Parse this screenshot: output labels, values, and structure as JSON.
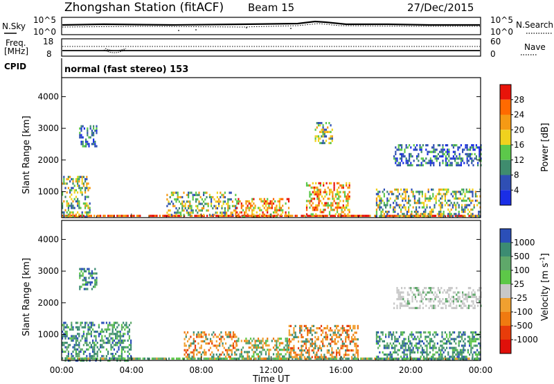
{
  "header": {
    "station_title": "Zhongshan Station (fitACF)",
    "beam": "Beam 15",
    "date": "27/Dec/2015"
  },
  "sky_panel": {
    "left_label": "N.Sky",
    "left_ticks": [
      "10^5",
      "10^0"
    ],
    "right_ticks": [
      "10^5",
      "10^0"
    ],
    "right_label": "N.Search"
  },
  "freq_panel": {
    "left_label_line1": "Freq.",
    "left_label_line2": "[MHz]",
    "left_ticks": [
      "18",
      "8"
    ],
    "right_ticks": [
      "60",
      "0"
    ],
    "right_label": "Nave"
  },
  "cpid_panel": {
    "label": "CPID",
    "value": "normal (fast stereo) 153"
  },
  "colors": {
    "power_scale": [
      "#1a2ee6",
      "#2f4fb4",
      "#3f8c6e",
      "#5cc84a",
      "#f0d21e",
      "#f59a14",
      "#ff6a00",
      "#e8140a"
    ],
    "velocity_scale": [
      "#2b4fb8",
      "#3c8c72",
      "#5fa86a",
      "#5dc848",
      "#c8c8c8",
      "#f0a030",
      "#f07a10",
      "#e83c0a",
      "#e0100a"
    ]
  },
  "chart_data": [
    {
      "type": "heatmap",
      "panel": "power",
      "title": "",
      "xlabel": "",
      "ylabel": "Slant Range [km]",
      "yticks": [
        "1000",
        "2000",
        "3000",
        "4000"
      ],
      "ylim": [
        180,
        4600
      ],
      "colorbar_label": "Power [dB]",
      "colorbar_ticks": [
        "4",
        "8",
        "12",
        "16",
        "20",
        "24",
        "28"
      ],
      "regions": [
        {
          "t0": 0.0,
          "t1": 1.6,
          "r0": 180,
          "r1": 1500,
          "level": "green-orange"
        },
        {
          "t0": 1.0,
          "t1": 2.0,
          "r0": 2400,
          "r1": 3100,
          "level": "blue-green"
        },
        {
          "t0": 6.0,
          "t1": 10.0,
          "r0": 250,
          "r1": 1000,
          "level": "green-orange"
        },
        {
          "t0": 10.0,
          "t1": 13.0,
          "r0": 200,
          "r1": 800,
          "level": "orange-red"
        },
        {
          "t0": 14.0,
          "t1": 16.5,
          "r0": 250,
          "r1": 1300,
          "level": "orange-red"
        },
        {
          "t0": 14.5,
          "t1": 15.5,
          "r0": 2500,
          "r1": 3200,
          "level": "green-orange"
        },
        {
          "t0": 19.0,
          "t1": 24.0,
          "r0": 1800,
          "r1": 2500,
          "level": "blue-green"
        },
        {
          "t0": 18.0,
          "t1": 24.0,
          "r0": 200,
          "r1": 1100,
          "level": "green-orange"
        }
      ]
    },
    {
      "type": "heatmap",
      "panel": "velocity",
      "title": "",
      "xlabel": "Time UT",
      "ylabel": "Slant Range [km]",
      "xticks": [
        "00:00",
        "04:00",
        "08:00",
        "12:00",
        "16:00",
        "20:00",
        "00:00"
      ],
      "yticks": [
        "1000",
        "2000",
        "3000",
        "4000"
      ],
      "ylim": [
        180,
        4600
      ],
      "colorbar_label": "Velocity [m s^-1]",
      "colorbar_ticks": [
        "1000",
        "500",
        "100",
        "25",
        "-25",
        "-100",
        "-500",
        "-1000"
      ],
      "regions": [
        {
          "t0": 0.0,
          "t1": 4.0,
          "r0": 200,
          "r1": 1400,
          "level": "green-blue"
        },
        {
          "t0": 1.0,
          "t1": 2.0,
          "r0": 2400,
          "r1": 3100,
          "level": "green-blue"
        },
        {
          "t0": 7.0,
          "t1": 10.0,
          "r0": 300,
          "r1": 1100,
          "level": "orange"
        },
        {
          "t0": 10.0,
          "t1": 13.0,
          "r0": 250,
          "r1": 900,
          "level": "green-orange"
        },
        {
          "t0": 13.0,
          "t1": 17.0,
          "r0": 300,
          "r1": 1300,
          "level": "orange"
        },
        {
          "t0": 19.0,
          "t1": 24.0,
          "r0": 1800,
          "r1": 2500,
          "level": "gray"
        },
        {
          "t0": 18.0,
          "t1": 24.0,
          "r0": 200,
          "r1": 1100,
          "level": "green"
        }
      ]
    }
  ]
}
